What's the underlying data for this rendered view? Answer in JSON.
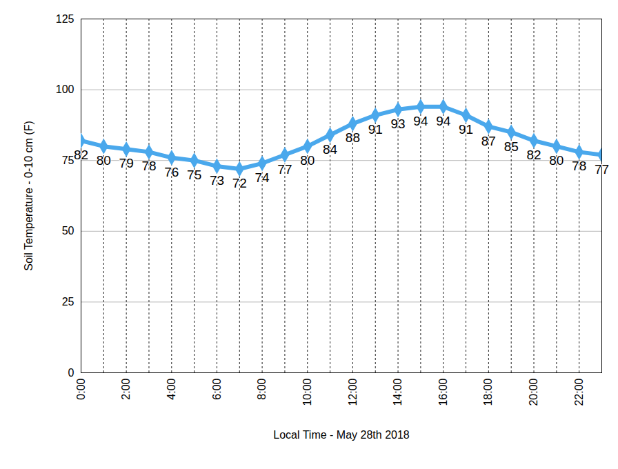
{
  "chart_data": {
    "type": "line",
    "x_label": "Local Time - May 28th 2018",
    "y_label": "Soil Temperature - 0-10 cm (F)",
    "x": [
      0,
      1,
      2,
      3,
      4,
      5,
      6,
      7,
      8,
      9,
      10,
      11,
      12,
      13,
      14,
      15,
      16,
      17,
      18,
      19,
      20,
      21,
      22,
      23
    ],
    "values": [
      82,
      80,
      79,
      78,
      76,
      75,
      73,
      72,
      74,
      77,
      80,
      84,
      88,
      91,
      93,
      94,
      94,
      91,
      87,
      85,
      82,
      80,
      78,
      77
    ],
    "color": "#4aa8ec",
    "marker": "diamond",
    "xlim": [
      0,
      23
    ],
    "xticks": [
      {
        "value": 0,
        "label": "0:00"
      },
      {
        "value": 2,
        "label": "2:00"
      },
      {
        "value": 4,
        "label": "4:00"
      },
      {
        "value": 6,
        "label": "6:00"
      },
      {
        "value": 8,
        "label": "8:00"
      },
      {
        "value": 10,
        "label": "10:00"
      },
      {
        "value": 12,
        "label": "12:00"
      },
      {
        "value": 14,
        "label": "14:00"
      },
      {
        "value": 16,
        "label": "16:00"
      },
      {
        "value": 18,
        "label": "18:00"
      },
      {
        "value": 20,
        "label": "20:00"
      },
      {
        "value": 22,
        "label": "22:00"
      }
    ],
    "ylim": [
      0,
      125
    ],
    "yticks": [
      0,
      25,
      50,
      75,
      100,
      125
    ],
    "grid": true,
    "data_labels": true
  }
}
